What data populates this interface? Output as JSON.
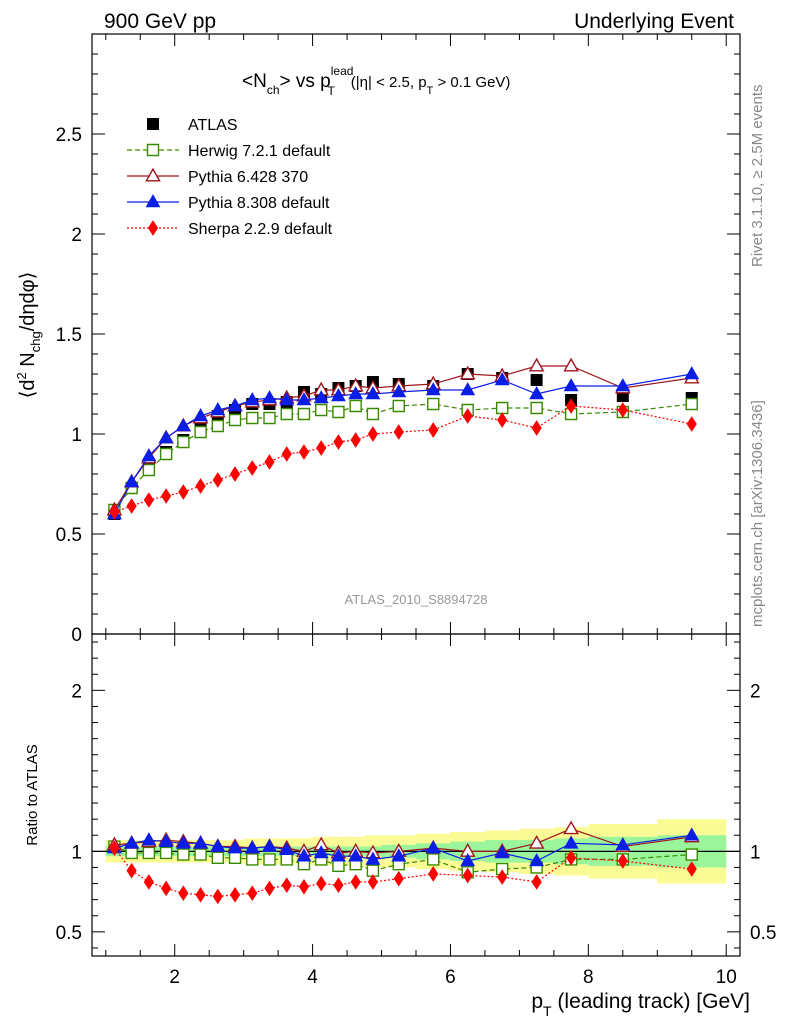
{
  "header": {
    "left": "900 GeV pp",
    "right": "Underlying Event"
  },
  "side_labels": {
    "rivet": "Rivet 3.1.10, ≥ 2.5M events",
    "mcplots": "mcplots.cern.ch [arXiv:1306.3436]"
  },
  "watermark": "ATLAS_2010_S8894728",
  "chart_data": [
    {
      "type": "scatter",
      "panel": "main",
      "title": "<N_ch> vs p_T^lead (|η| < 2.5, p_T > 0.1 GeV)",
      "ylabel": "⟨d² N_chg/dηdφ⟩",
      "xlim": [
        0.8,
        10.2
      ],
      "ylim": [
        0,
        3.0
      ],
      "x_ticks": [
        2,
        4,
        6,
        8,
        10
      ],
      "y_ticks": [
        0,
        0.5,
        1,
        1.5,
        2,
        2.5
      ],
      "y_tick_labels": [
        "0",
        "0.5",
        "1",
        "1.5",
        "2",
        "2.5"
      ],
      "legend_position": "top-left",
      "x": [
        1.125,
        1.375,
        1.625,
        1.875,
        2.125,
        2.375,
        2.625,
        2.875,
        3.125,
        3.375,
        3.625,
        3.875,
        4.125,
        4.375,
        4.625,
        4.875,
        5.25,
        5.75,
        6.25,
        6.75,
        7.25,
        7.75,
        8.5,
        9.5
      ],
      "series": [
        {
          "name": "ATLAS",
          "color": "#000000",
          "marker": "square-filled",
          "line": "none",
          "values": [
            0.6,
            0.73,
            0.83,
            0.91,
            0.97,
            1.03,
            1.09,
            1.12,
            1.15,
            1.15,
            1.16,
            1.21,
            1.2,
            1.23,
            1.24,
            1.26,
            1.25,
            1.24,
            1.3,
            1.28,
            1.27,
            1.17,
            1.19,
            1.18
          ]
        },
        {
          "name": "Herwig 7.2.1 default",
          "color": "#3a8a00",
          "marker": "square-open",
          "line": "dashed",
          "values": [
            0.62,
            0.73,
            0.82,
            0.9,
            0.96,
            1.01,
            1.04,
            1.07,
            1.08,
            1.08,
            1.1,
            1.1,
            1.12,
            1.11,
            1.14,
            1.1,
            1.14,
            1.15,
            1.12,
            1.13,
            1.13,
            1.1,
            1.11,
            1.15
          ]
        },
        {
          "name": "Pythia 6.428 370",
          "color": "#a0141e",
          "marker": "triangle-open",
          "line": "solid",
          "values": [
            0.62,
            0.76,
            0.88,
            0.98,
            1.04,
            1.08,
            1.11,
            1.14,
            1.16,
            1.17,
            1.18,
            1.19,
            1.22,
            1.22,
            1.24,
            1.23,
            1.24,
            1.25,
            1.3,
            1.29,
            1.34,
            1.34,
            1.23,
            1.28
          ]
        },
        {
          "name": "Pythia 8.308 default",
          "color": "#0a1ee6",
          "marker": "triangle-filled",
          "line": "solid",
          "values": [
            0.6,
            0.76,
            0.89,
            0.98,
            1.04,
            1.09,
            1.12,
            1.14,
            1.17,
            1.18,
            1.17,
            1.17,
            1.18,
            1.19,
            1.2,
            1.2,
            1.21,
            1.22,
            1.22,
            1.27,
            1.2,
            1.24,
            1.24,
            1.3
          ]
        },
        {
          "name": "Sherpa 2.2.9 default",
          "color": "#ff0000",
          "marker": "diamond-filled",
          "line": "dotted",
          "values": [
            0.61,
            0.64,
            0.67,
            0.69,
            0.71,
            0.74,
            0.77,
            0.8,
            0.83,
            0.86,
            0.9,
            0.91,
            0.93,
            0.96,
            0.97,
            1.0,
            1.01,
            1.02,
            1.09,
            1.07,
            1.03,
            1.14,
            1.12,
            1.05
          ]
        }
      ]
    },
    {
      "type": "scatter",
      "panel": "ratio",
      "ylabel": "Ratio to ATLAS",
      "xlabel": "p_T (leading track) [GeV]",
      "xlim": [
        0.8,
        10.2
      ],
      "ylim": [
        0.35,
        2.35
      ],
      "x_ticks": [
        2,
        4,
        6,
        8,
        10
      ],
      "y_ticks": [
        0.5,
        1,
        2
      ],
      "y_tick_labels": [
        "0.5",
        "1",
        "2"
      ],
      "x": [
        1.125,
        1.375,
        1.625,
        1.875,
        2.125,
        2.375,
        2.625,
        2.875,
        3.125,
        3.375,
        3.625,
        3.875,
        4.125,
        4.375,
        4.625,
        4.875,
        5.25,
        5.75,
        6.25,
        6.75,
        7.25,
        7.75,
        8.5,
        9.5
      ],
      "band_edges": [
        1.0,
        1.25,
        1.5,
        1.75,
        2.0,
        2.25,
        2.5,
        2.75,
        3.0,
        3.25,
        3.5,
        3.75,
        4.0,
        4.25,
        4.5,
        4.75,
        5.0,
        5.5,
        6.0,
        6.5,
        7.0,
        7.5,
        8.0,
        9.0,
        10.0
      ],
      "band_stat": [
        0.03,
        0.03,
        0.03,
        0.03,
        0.03,
        0.03,
        0.03,
        0.03,
        0.03,
        0.03,
        0.03,
        0.03,
        0.03,
        0.03,
        0.03,
        0.03,
        0.04,
        0.05,
        0.06,
        0.07,
        0.07,
        0.08,
        0.09,
        0.1
      ],
      "band_total": [
        0.07,
        0.07,
        0.07,
        0.07,
        0.07,
        0.07,
        0.07,
        0.07,
        0.08,
        0.08,
        0.08,
        0.08,
        0.09,
        0.09,
        0.09,
        0.1,
        0.1,
        0.11,
        0.12,
        0.13,
        0.14,
        0.15,
        0.17,
        0.2
      ],
      "band_colors": {
        "stat": "#9bf59b",
        "total": "#fbfb95"
      },
      "series": [
        {
          "name": "Herwig 7.2.1 default",
          "color": "#3a8a00",
          "marker": "square-open",
          "line": "dashed",
          "values": [
            1.03,
            0.99,
            0.99,
            0.99,
            0.98,
            0.98,
            0.96,
            0.96,
            0.95,
            0.95,
            0.95,
            0.92,
            0.95,
            0.91,
            0.92,
            0.88,
            0.92,
            0.95,
            0.87,
            0.89,
            0.9,
            0.95,
            0.95,
            0.98
          ]
        },
        {
          "name": "Pythia 6.428 370",
          "color": "#a0141e",
          "marker": "triangle-open",
          "line": "solid",
          "values": [
            1.04,
            1.05,
            1.06,
            1.07,
            1.06,
            1.05,
            1.03,
            1.03,
            1.02,
            1.03,
            1.02,
            1.0,
            1.04,
            0.99,
            1.0,
            0.99,
            1.0,
            1.02,
            1.0,
            1.0,
            1.05,
            1.14,
            1.03,
            1.09
          ]
        },
        {
          "name": "Pythia 8.308 default",
          "color": "#0a1ee6",
          "marker": "triangle-filled",
          "line": "solid",
          "values": [
            1.02,
            1.05,
            1.07,
            1.06,
            1.05,
            1.05,
            1.03,
            1.02,
            1.02,
            1.03,
            1.01,
            0.97,
            0.99,
            0.97,
            0.97,
            0.95,
            0.97,
            1.02,
            0.94,
            0.99,
            0.94,
            1.05,
            1.04,
            1.1
          ]
        },
        {
          "name": "Sherpa 2.2.9 default",
          "color": "#ff0000",
          "marker": "diamond-filled",
          "line": "dotted",
          "values": [
            1.02,
            0.88,
            0.81,
            0.77,
            0.74,
            0.73,
            0.72,
            0.73,
            0.74,
            0.77,
            0.79,
            0.78,
            0.8,
            0.79,
            0.81,
            0.81,
            0.83,
            0.86,
            0.85,
            0.84,
            0.81,
            0.96,
            0.94,
            0.89
          ]
        }
      ]
    }
  ]
}
